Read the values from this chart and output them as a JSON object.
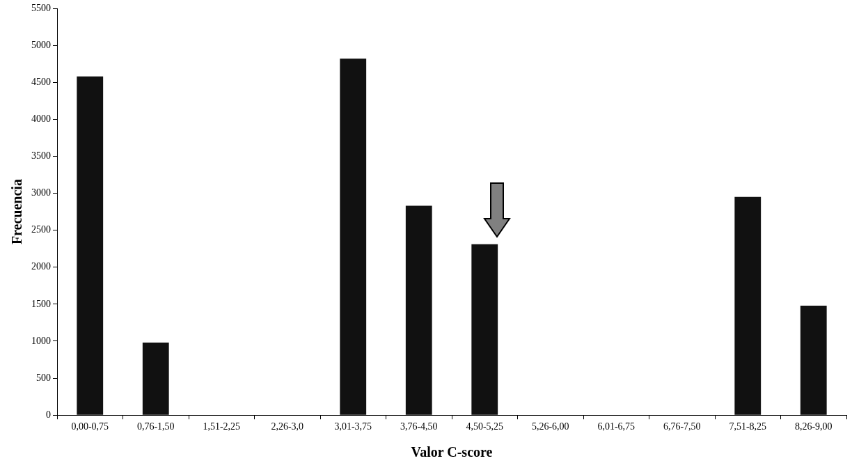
{
  "chart_data": {
    "type": "bar",
    "xlabel": "Valor C-score",
    "ylabel": "Frecuencia",
    "categories": [
      "0,00-0,75",
      "0,76-1,50",
      "1,51-2,25",
      "2,26-3,0",
      "3,01-3,75",
      "3,76-4,50",
      "4,50-5,25",
      "5,26-6,00",
      "6,01-6,75",
      "6,76-7,50",
      "7,51-8,25",
      "8,26-9,00"
    ],
    "values": [
      4580,
      980,
      0,
      0,
      4820,
      2830,
      2310,
      0,
      0,
      0,
      2950,
      1480
    ],
    "color": "#111111",
    "ylim": [
      0,
      5500
    ],
    "yticks": [
      0,
      500,
      1000,
      1500,
      2000,
      2500,
      3000,
      3500,
      4000,
      4500,
      5000,
      5500
    ],
    "grid": false,
    "legend": false
  }
}
